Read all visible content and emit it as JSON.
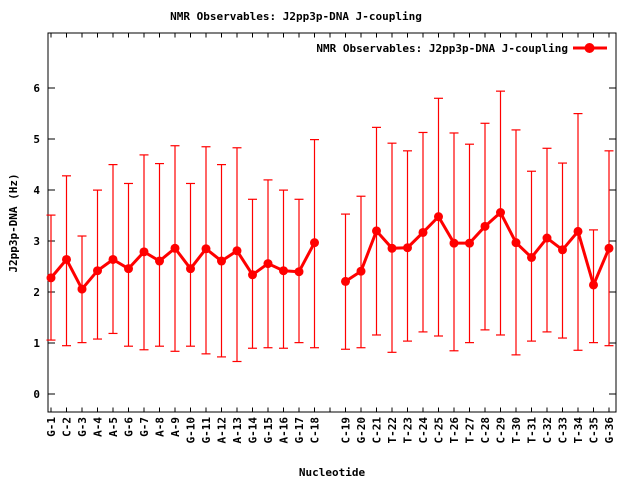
{
  "title": "NMR Observables: J2pp3p-DNA J-coupling",
  "legend": {
    "label": "NMR Observables: J2pp3p-DNA J-coupling"
  },
  "axes": {
    "xlabel": "Nucleotide",
    "ylabel": "J2pp3p-DNA (Hz)"
  },
  "chart_data": {
    "type": "line",
    "title": "NMR Observables: J2pp3p-DNA J-coupling",
    "xlabel": "Nucleotide",
    "ylabel": "J2pp3p-DNA (Hz)",
    "legend_position": "top-right-inside",
    "grid": false,
    "color": "#ff0000",
    "frame_color": "#000000",
    "ylim": [
      -0.35,
      7.08
    ],
    "yticks": [
      0,
      1,
      2,
      3,
      4,
      5,
      6
    ],
    "gap_after_index": 17,
    "categories": [
      "G-1",
      "C-2",
      "G-3",
      "A-4",
      "A-5",
      "G-6",
      "G-7",
      "A-8",
      "A-9",
      "G-10",
      "G-11",
      "A-12",
      "A-13",
      "G-14",
      "G-15",
      "A-16",
      "G-17",
      "C-18",
      "C-19",
      "G-20",
      "C-21",
      "T-22",
      "T-23",
      "C-24",
      "C-25",
      "T-26",
      "T-27",
      "C-28",
      "C-29",
      "T-30",
      "T-31",
      "C-32",
      "C-33",
      "T-34",
      "C-35",
      "G-36"
    ],
    "series": [
      {
        "name": "NMR Observables: J2pp3p-DNA J-coupling",
        "marker": "filled-circle",
        "values": [
          2.28,
          2.64,
          2.06,
          2.42,
          2.64,
          2.46,
          2.79,
          2.61,
          2.86,
          2.46,
          2.85,
          2.61,
          2.81,
          2.34,
          2.56,
          2.42,
          2.4,
          2.97,
          2.21,
          2.41,
          3.2,
          2.86,
          2.87,
          3.17,
          3.48,
          2.96,
          2.96,
          3.29,
          3.56,
          2.97,
          2.68,
          3.06,
          2.83,
          3.19,
          2.14,
          2.86
        ],
        "err_high": [
          3.51,
          4.28,
          3.1,
          4.0,
          4.5,
          4.13,
          4.69,
          4.52,
          4.87,
          4.13,
          4.85,
          4.5,
          4.83,
          3.82,
          4.2,
          4.0,
          3.82,
          4.99,
          3.53,
          3.88,
          5.23,
          4.92,
          4.77,
          5.13,
          5.8,
          5.12,
          4.9,
          5.31,
          5.94,
          5.18,
          4.37,
          4.82,
          4.53,
          5.5,
          3.22,
          4.77
        ],
        "err_low": [
          1.06,
          0.95,
          1.01,
          1.08,
          1.19,
          0.94,
          0.87,
          0.94,
          0.84,
          0.94,
          0.79,
          0.73,
          0.64,
          0.9,
          0.91,
          0.9,
          1.01,
          0.91,
          0.88,
          0.91,
          1.16,
          0.82,
          1.04,
          1.22,
          1.14,
          0.85,
          1.01,
          1.26,
          1.16,
          0.77,
          1.04,
          1.22,
          1.1,
          0.86,
          1.01,
          0.95
        ],
        "segments": [
          [
            0,
            17
          ],
          [
            18,
            35
          ]
        ]
      }
    ]
  }
}
